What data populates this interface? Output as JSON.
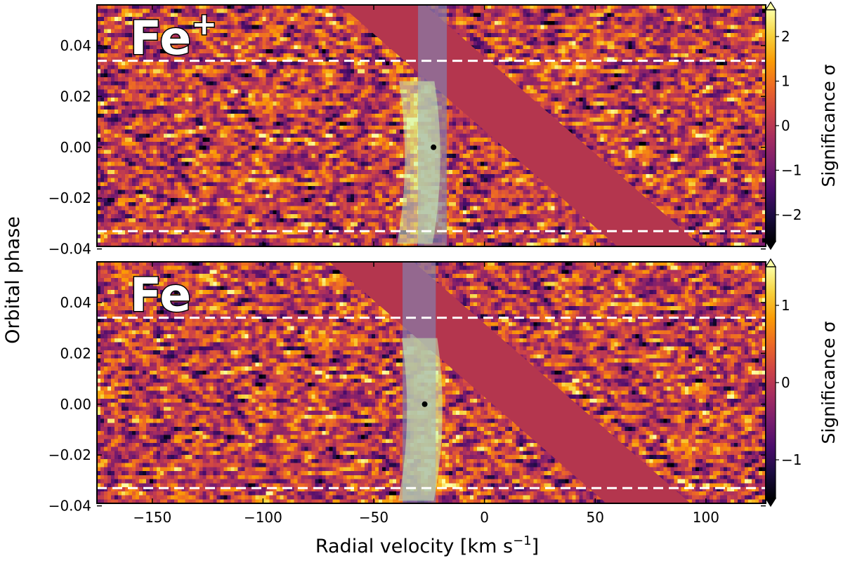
{
  "figure": {
    "ylabel": "Orbital phase",
    "xlabel_main": "Radial velocity [km s",
    "xlabel_sup": "−1",
    "xlabel_end": "]"
  },
  "chart_data": [
    {
      "type": "heatmap",
      "panel_label": "Fe",
      "panel_label_sup": "+",
      "xlim": [
        -175,
        127
      ],
      "ylim": [
        -0.039,
        0.056
      ],
      "x_ticks": [
        -150,
        -100,
        -50,
        0,
        50,
        100
      ],
      "x_tick_labels": [
        "−150",
        "−100",
        "−50",
        "0",
        "50",
        "100"
      ],
      "y_ticks": [
        -0.04,
        -0.02,
        0.0,
        0.02,
        0.04
      ],
      "y_tick_labels": [
        "−0.04",
        "−0.02",
        "0.00",
        "0.02",
        "0.04"
      ],
      "dashed_lines_phase": [
        0.034,
        -0.033
      ],
      "peak": {
        "rv": -23,
        "phase": 0.0
      },
      "planet_trail_rv_at_phase0": -28,
      "planet_trail_rv_slope": 150,
      "mask_band": {
        "rv_at_phase_top": -65,
        "rv_at_phase_bottom": 60,
        "width_kms": 38
      },
      "vertical_band": {
        "rv_min": -30,
        "rv_max": -17
      },
      "colorbar": {
        "label": "Significance σ",
        "ticks": [
          2,
          1,
          0,
          -1,
          -2
        ],
        "tick_labels": [
          "2",
          "1",
          "0",
          "−1",
          "−2"
        ],
        "range": [
          -2.6,
          2.6
        ]
      }
    },
    {
      "type": "heatmap",
      "panel_label": "Fe",
      "panel_label_sup": "",
      "xlim": [
        -175,
        127
      ],
      "ylim": [
        -0.039,
        0.056
      ],
      "x_ticks": [
        -150,
        -100,
        -50,
        0,
        50,
        100
      ],
      "x_tick_labels": [
        "−150",
        "−100",
        "−50",
        "0",
        "50",
        "100"
      ],
      "y_ticks": [
        -0.04,
        -0.02,
        0.0,
        0.02,
        0.04
      ],
      "y_tick_labels": [
        "−0.04",
        "−0.02",
        "0.00",
        "0.02",
        "0.04"
      ],
      "dashed_lines_phase": [
        0.034,
        -0.033
      ],
      "peak": {
        "rv": -27,
        "phase": 0.0
      },
      "planet_trail_rv_at_phase0": -27,
      "planet_trail_rv_slope": 80,
      "mask_band": {
        "rv_at_phase_top": -70,
        "rv_at_phase_bottom": 55,
        "width_kms": 38
      },
      "vertical_band": {
        "rv_min": -37,
        "rv_max": -22
      },
      "colorbar": {
        "label": "Significance σ",
        "ticks": [
          1,
          0,
          -1
        ],
        "tick_labels": [
          "1",
          "0",
          "−1"
        ],
        "range": [
          -1.5,
          1.5
        ]
      }
    }
  ],
  "colors": {
    "mask": "#b4364e",
    "vband": "#8a7aa6",
    "trail": "#c8f0b4",
    "dashed": "#ffffff",
    "cmap": [
      "#000004",
      "#1b0c41",
      "#4a0c6b",
      "#781c6d",
      "#a52c60",
      "#cf4446",
      "#ed6925",
      "#fb9b06",
      "#f7d13d",
      "#fcffa4"
    ]
  }
}
